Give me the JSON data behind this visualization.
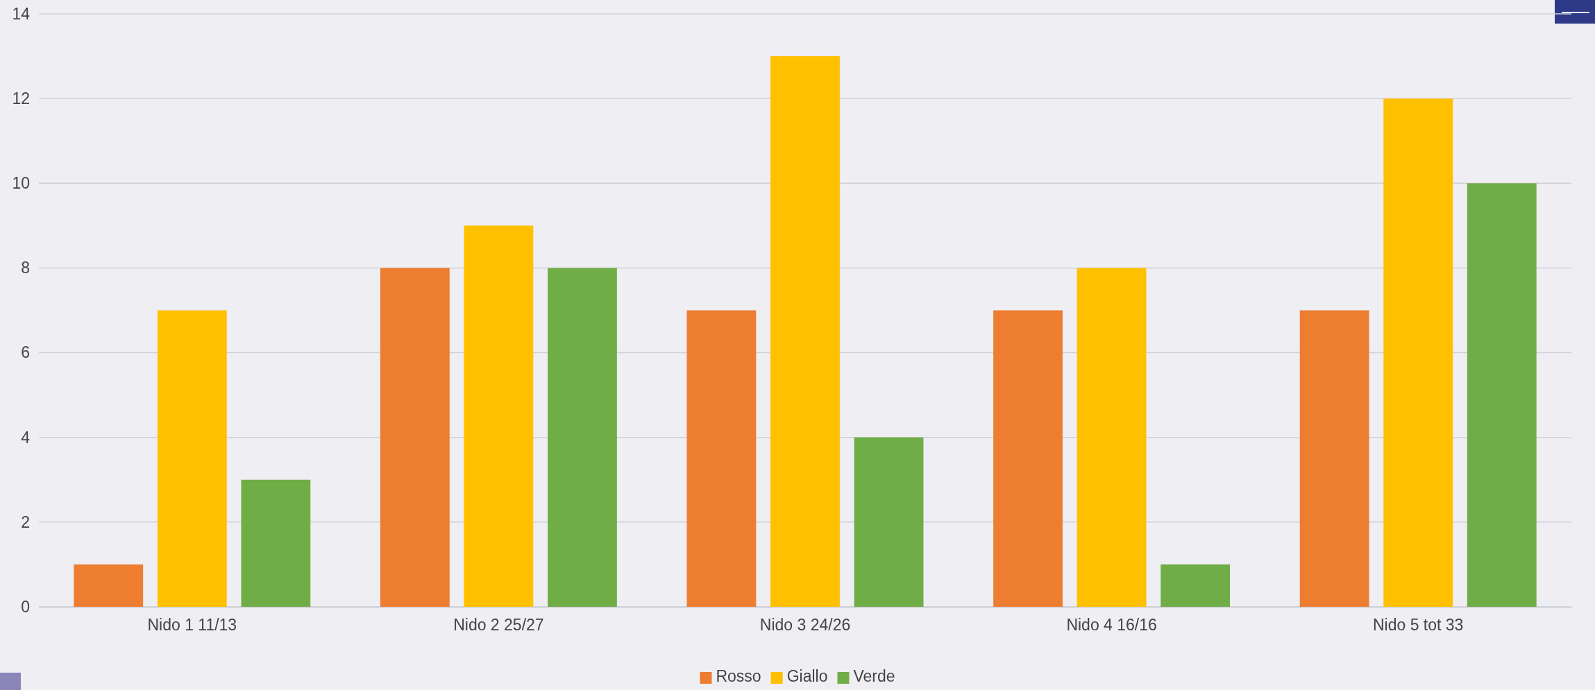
{
  "chart_data": {
    "type": "bar",
    "categories": [
      "Nido 1 11/13",
      "Nido 2 25/27",
      "Nido 3 24/26",
      "Nido 4 16/16",
      "Nido 5 tot 33"
    ],
    "series": [
      {
        "name": "Rosso",
        "color": "#ed7d31",
        "values": [
          1,
          8,
          7,
          7,
          7
        ]
      },
      {
        "name": "Giallo",
        "color": "#ffc000",
        "values": [
          7,
          9,
          13,
          8,
          12
        ]
      },
      {
        "name": "Verde",
        "color": "#70ad47",
        "values": [
          3,
          8,
          4,
          1,
          10
        ]
      }
    ],
    "ylim": [
      0,
      14
    ],
    "yticks": [
      0,
      2,
      4,
      6,
      8,
      10,
      12,
      14
    ],
    "grid": "y",
    "legend": "bottom"
  }
}
